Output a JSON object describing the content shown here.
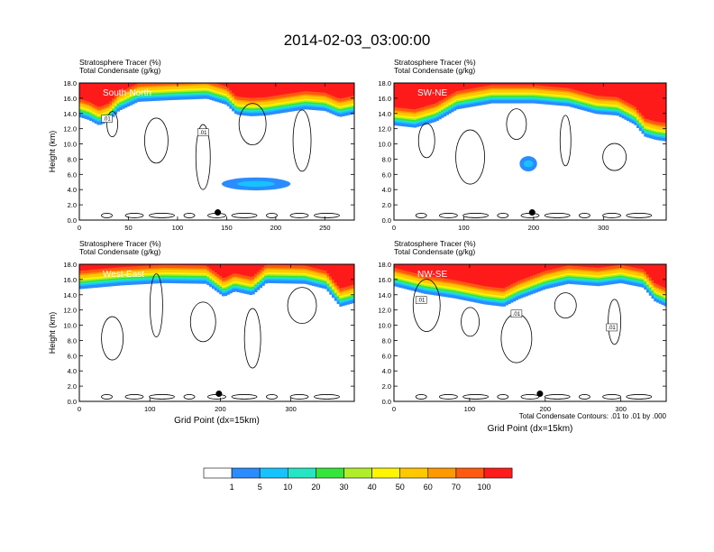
{
  "main_title": "2014-02-03_03:00:00",
  "colors": [
    "#ffffff",
    "#2a8cff",
    "#17c3ff",
    "#25e5c2",
    "#34e63a",
    "#3fe21a",
    "#b0ee2a",
    "#fff500",
    "#ffc800",
    "#ff9900",
    "#ff5a10",
    "#ff1b1b"
  ],
  "chart_data": [
    {
      "type": "heatmap",
      "panel_label": "South-North",
      "title_line1": "Stratosphere Tracer   (%)",
      "title_line2": "Total Condensate   (g/kg)",
      "ylabel": "Height (km)",
      "xlabel": "",
      "xlim": [
        0,
        280
      ],
      "ylim": [
        0,
        18
      ],
      "xticks": [
        0,
        50,
        100,
        150,
        200,
        250
      ],
      "yticks": [
        "0.0",
        "2.0",
        "4.0",
        "6.0",
        "8.0",
        "10.0",
        "12.0",
        "14.0",
        "16.0",
        "18.0"
      ],
      "tracer_top_profile_km": [
        [
          0,
          13.6
        ],
        [
          10,
          13.2
        ],
        [
          20,
          12.5
        ],
        [
          30,
          13.0
        ],
        [
          40,
          14.4
        ],
        [
          60,
          15.6
        ],
        [
          90,
          15.8
        ],
        [
          130,
          16.0
        ],
        [
          150,
          15.2
        ],
        [
          160,
          13.9
        ],
        [
          175,
          13.7
        ],
        [
          190,
          13.8
        ],
        [
          210,
          14.2
        ],
        [
          230,
          14.6
        ],
        [
          250,
          14.4
        ],
        [
          265,
          13.6
        ],
        [
          280,
          14.0
        ]
      ],
      "tracer_blobs": [
        {
          "x": [
            145,
            215
          ],
          "y": [
            3.9,
            5.6
          ],
          "value": 5
        }
      ],
      "contour_labels": [
        ".01",
        ".01"
      ],
      "marker": {
        "x": 141,
        "y": 1.0
      }
    },
    {
      "type": "heatmap",
      "panel_label": "SW-NE",
      "title_line1": "Stratosphere Tracer   (%)",
      "title_line2": "Total Condensate   (g/kg)",
      "ylabel": "",
      "xlabel": "",
      "xlim": [
        0,
        390
      ],
      "ylim": [
        0,
        18
      ],
      "xticks": [
        0,
        100,
        200,
        300
      ],
      "yticks": [
        "0.0",
        "2.0",
        "4.0",
        "6.0",
        "8.0",
        "10.0",
        "12.0",
        "14.0",
        "16.0",
        "18.0"
      ],
      "tracer_top_profile_km": [
        [
          0,
          12.5
        ],
        [
          30,
          12.2
        ],
        [
          60,
          13.0
        ],
        [
          90,
          14.6
        ],
        [
          140,
          15.4
        ],
        [
          200,
          15.4
        ],
        [
          250,
          15.0
        ],
        [
          290,
          14.0
        ],
        [
          320,
          13.8
        ],
        [
          345,
          12.6
        ],
        [
          360,
          11.0
        ],
        [
          375,
          10.6
        ],
        [
          390,
          10.4
        ]
      ],
      "tracer_blobs": [
        {
          "x": [
            180,
            205
          ],
          "y": [
            6.4,
            8.4
          ],
          "value": 10
        }
      ],
      "contour_labels": [],
      "marker": {
        "x": 198,
        "y": 1.0
      }
    },
    {
      "type": "heatmap",
      "panel_label": "West-East",
      "title_line1": "Stratosphere Tracer   (%)",
      "title_line2": "Total Condensate   (g/kg)",
      "ylabel": "Height (km)",
      "xlabel": "Grid Point (dx=15km)",
      "xlim": [
        0,
        390
      ],
      "ylim": [
        0,
        18
      ],
      "xticks": [
        0,
        100,
        200,
        300
      ],
      "yticks": [
        "0.0",
        "2.0",
        "4.0",
        "6.0",
        "8.0",
        "10.0",
        "12.0",
        "14.0",
        "16.0",
        "18.0"
      ],
      "tracer_top_profile_km": [
        [
          0,
          14.8
        ],
        [
          60,
          15.3
        ],
        [
          120,
          15.6
        ],
        [
          180,
          15.5
        ],
        [
          205,
          13.8
        ],
        [
          220,
          14.5
        ],
        [
          245,
          14.0
        ],
        [
          265,
          15.6
        ],
        [
          320,
          15.5
        ],
        [
          350,
          14.8
        ],
        [
          370,
          12.5
        ],
        [
          390,
          13.0
        ]
      ],
      "tracer_blobs": [],
      "contour_labels": [],
      "marker": {
        "x": 198,
        "y": 1.0
      }
    },
    {
      "type": "heatmap",
      "panel_label": "NW-SE",
      "title_line1": "Stratosphere Tracer   (%)",
      "title_line2": "Total Condensate   (g/kg)",
      "ylabel": "",
      "xlabel": "Grid Point (dx=15km)",
      "xlim": [
        0,
        360
      ],
      "ylim": [
        0,
        18
      ],
      "xticks": [
        0,
        100,
        200,
        300
      ],
      "yticks": [
        "0.0",
        "2.0",
        "4.0",
        "6.0",
        "8.0",
        "10.0",
        "12.0",
        "14.0",
        "16.0",
        "18.0"
      ],
      "tracer_top_profile_km": [
        [
          0,
          15.2
        ],
        [
          40,
          14.2
        ],
        [
          80,
          13.6
        ],
        [
          120,
          12.8
        ],
        [
          145,
          12.5
        ],
        [
          165,
          13.5
        ],
        [
          200,
          14.8
        ],
        [
          230,
          15.5
        ],
        [
          270,
          15.2
        ],
        [
          300,
          15.6
        ],
        [
          330,
          15.0
        ],
        [
          345,
          13.2
        ],
        [
          360,
          12.5
        ]
      ],
      "tracer_blobs": [],
      "contour_labels": [
        ".01",
        ".01",
        ".01"
      ],
      "marker": {
        "x": 193,
        "y": 1.0
      }
    }
  ],
  "footnote": "Total Condensate Contours: .01 to .01 by .000",
  "colorbar": {
    "labels": [
      "1",
      "5",
      "10",
      "20",
      "30",
      "40",
      "50",
      "60",
      "70",
      "100"
    ],
    "colors": [
      "#ffffff",
      "#2a8cff",
      "#17c3ff",
      "#25e5c2",
      "#34e63a",
      "#b0ee2a",
      "#fff500",
      "#ffc800",
      "#ff9900",
      "#ff5a10",
      "#ff1b1b"
    ]
  }
}
